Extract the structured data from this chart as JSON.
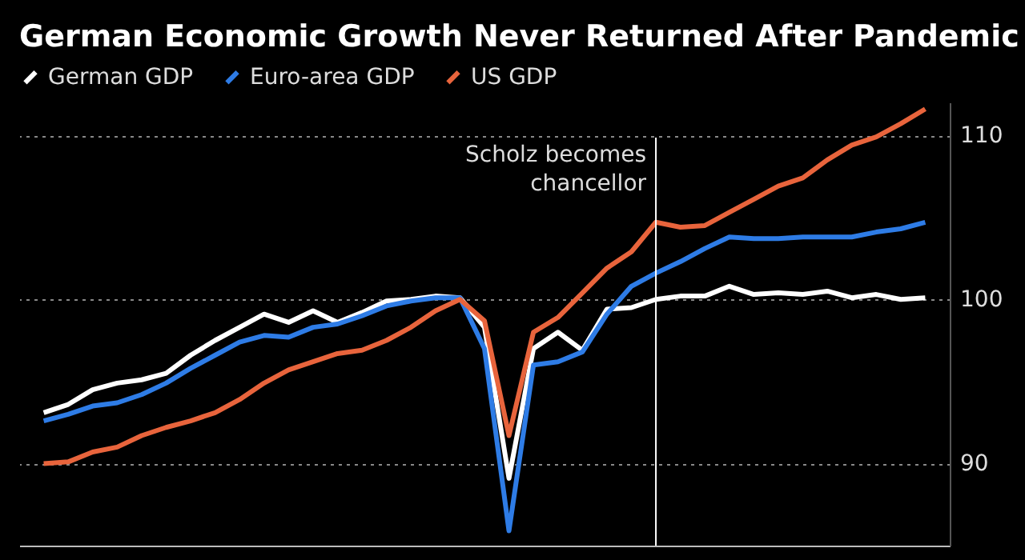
{
  "chart_data": {
    "type": "line",
    "title": "German Economic Growth Never Returned After Pandemic",
    "categories": [
      null,
      null,
      null,
      null,
      null,
      null,
      null,
      null,
      null,
      null,
      null,
      null,
      null,
      null,
      null,
      null,
      null,
      null,
      null,
      null,
      null,
      null,
      null,
      null,
      null,
      null,
      null,
      null,
      null,
      null,
      null,
      null,
      null,
      null,
      null,
      null,
      null
    ],
    "series": [
      {
        "name": "German GDP",
        "color": "#ffffff",
        "values": [
          93.1,
          93.6,
          94.5,
          94.9,
          95.1,
          95.5,
          96.6,
          97.5,
          98.3,
          99.1,
          98.6,
          99.3,
          98.6,
          99.2,
          99.9,
          100,
          100.2,
          100.1,
          98.3,
          89.1,
          97.0,
          98.0,
          96.9,
          99.4,
          99.5,
          100,
          100.2,
          100.2,
          100.8,
          100.3,
          100.4,
          100.3,
          100.5,
          100.1,
          100.3,
          100,
          100.1
        ]
      },
      {
        "name": "Euro-area GDP",
        "color": "#2e7ce6",
        "values": [
          92.6,
          93.0,
          93.5,
          93.7,
          94.2,
          94.9,
          95.8,
          96.6,
          97.4,
          97.8,
          97.7,
          98.3,
          98.5,
          99.0,
          99.6,
          99.9,
          100.1,
          100.1,
          97.0,
          85.9,
          96.0,
          96.2,
          96.8,
          99.1,
          100.8,
          101.6,
          102.3,
          103.1,
          103.8,
          103.7,
          103.7,
          103.8,
          103.8,
          103.8,
          104.1,
          104.3,
          104.7
        ]
      },
      {
        "name": "US GDP",
        "color": "#e8643c",
        "values": [
          90.0,
          90.1,
          90.7,
          91.0,
          91.7,
          92.2,
          92.6,
          93.1,
          93.9,
          94.9,
          95.7,
          96.2,
          96.7,
          96.9,
          97.5,
          98.3,
          99.3,
          100.0,
          98.7,
          91.7,
          98.0,
          98.9,
          100.4,
          101.9,
          102.9,
          104.7,
          104.4,
          104.5,
          105.3,
          106.1,
          106.9,
          107.4,
          108.5,
          109.4,
          109.9,
          110.7,
          111.6
        ]
      }
    ],
    "ylim": [
      85,
      112
    ],
    "yticks": [
      90,
      100,
      110
    ],
    "tick_labels": "y",
    "grid": "y",
    "legend": "top left",
    "line_style": "solid",
    "marker": "none",
    "annotations": [
      "Scholz becomes\nchancellor"
    ]
  }
}
